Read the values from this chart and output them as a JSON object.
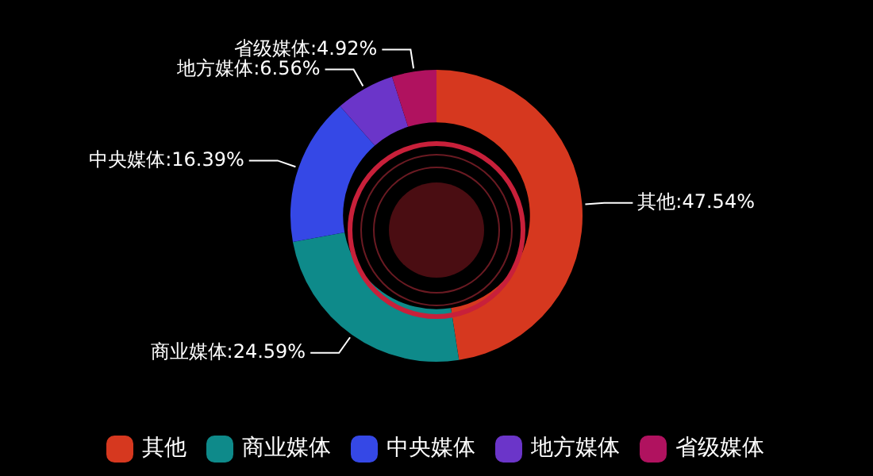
{
  "chart_data": {
    "type": "donut",
    "categories": [
      "其他",
      "商业媒体",
      "中央媒体",
      "地方媒体",
      "省级媒体"
    ],
    "values": [
      47.54,
      24.59,
      16.39,
      6.56,
      4.92
    ],
    "colors": [
      "#d6381f",
      "#0e8a8a",
      "#3548e6",
      "#6b35c9",
      "#b0125f"
    ],
    "value_labels": [
      "其他:47.54%",
      "商业媒体:24.59%",
      "中央媒体:16.39%",
      "地方媒体:6.56%",
      "省级媒体:4.92%"
    ],
    "legend": "bottom"
  }
}
